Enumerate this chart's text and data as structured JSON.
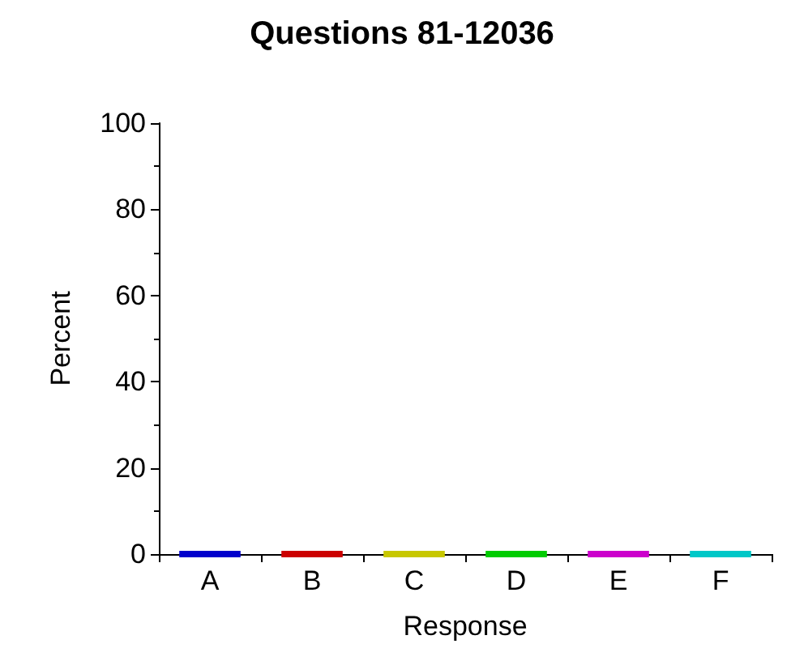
{
  "chart_data": {
    "type": "bar",
    "title": "Questions 81-12036",
    "xlabel": "Response",
    "ylabel": "Percent",
    "categories": [
      "A",
      "B",
      "C",
      "D",
      "E",
      "F"
    ],
    "values": [
      0,
      0,
      0,
      0,
      0,
      0
    ],
    "colors": [
      "#0000cc",
      "#cc0000",
      "#c8c800",
      "#00cc00",
      "#cc00cc",
      "#00c8c8"
    ],
    "ylim": [
      0,
      100
    ],
    "yticks": [
      0,
      20,
      40,
      60,
      80,
      100
    ],
    "grid": false
  }
}
